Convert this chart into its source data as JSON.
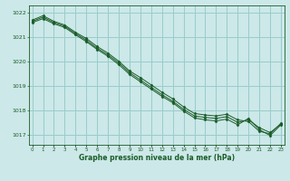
{
  "title": "Graphe pression niveau de la mer (hPa)",
  "background_color": "#cce8e8",
  "grid_color": "#99cccc",
  "line_color": "#1a5c28",
  "marker_color": "#1a5c28",
  "xlim": [
    -0.3,
    23.3
  ],
  "ylim": [
    1016.6,
    1022.3
  ],
  "yticks": [
    1017,
    1018,
    1019,
    1020,
    1021,
    1022
  ],
  "xticks": [
    0,
    1,
    2,
    3,
    4,
    5,
    6,
    7,
    8,
    9,
    10,
    11,
    12,
    13,
    14,
    15,
    16,
    17,
    18,
    19,
    20,
    21,
    22,
    23
  ],
  "series": [
    [
      1021.65,
      1021.82,
      1021.6,
      1021.45,
      1021.15,
      1020.88,
      1020.55,
      1020.28,
      1019.95,
      1019.55,
      1019.25,
      1018.95,
      1018.65,
      1018.38,
      1018.05,
      1017.78,
      1017.72,
      1017.68,
      1017.75,
      1017.52,
      1017.62,
      1017.3,
      1017.1,
      1017.45
    ],
    [
      1021.7,
      1021.88,
      1021.65,
      1021.5,
      1021.2,
      1020.95,
      1020.62,
      1020.35,
      1020.02,
      1019.62,
      1019.35,
      1019.05,
      1018.75,
      1018.48,
      1018.15,
      1017.88,
      1017.82,
      1017.78,
      1017.85,
      1017.62,
      1017.55,
      1017.15,
      1017.05,
      1017.48
    ],
    [
      1021.6,
      1021.76,
      1021.55,
      1021.4,
      1021.1,
      1020.82,
      1020.5,
      1020.22,
      1019.88,
      1019.48,
      1019.18,
      1018.88,
      1018.58,
      1018.32,
      1017.98,
      1017.7,
      1017.62,
      1017.58,
      1017.65,
      1017.42,
      1017.68,
      1017.22,
      1016.98,
      1017.42
    ]
  ]
}
